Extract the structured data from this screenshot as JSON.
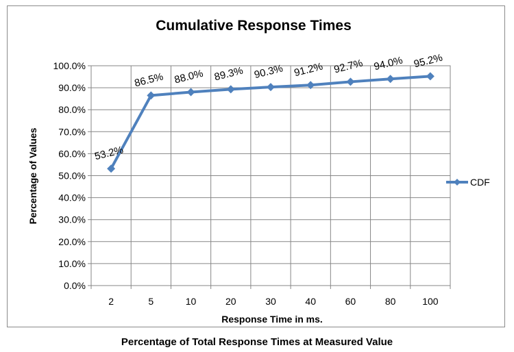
{
  "chart_data": {
    "type": "line",
    "title": "Cumulative Response Times",
    "xlabel": "Response Time in ms.",
    "ylabel": "Percentage of Values",
    "categories": [
      "2",
      "5",
      "10",
      "20",
      "30",
      "40",
      "60",
      "80",
      "100"
    ],
    "series": [
      {
        "name": "CDF",
        "values": [
          53.2,
          86.5,
          88.0,
          89.3,
          90.3,
          91.2,
          92.7,
          94.0,
          95.2
        ],
        "data_labels": [
          "53.2%",
          "86.5%",
          "88.0%",
          "89.3%",
          "90.3%",
          "91.2%",
          "92.7%",
          "94.0%",
          "95.2%"
        ],
        "color": "#4f81bd"
      }
    ],
    "y_tick_labels": [
      "0.0%",
      "10.0%",
      "20.0%",
      "30.0%",
      "40.0%",
      "50.0%",
      "60.0%",
      "70.0%",
      "80.0%",
      "90.0%",
      "100.0%"
    ],
    "ylim": [
      0,
      100
    ],
    "grid": true,
    "legend": "right",
    "caption": "Percentage of Total Response Times at Measured Value"
  }
}
